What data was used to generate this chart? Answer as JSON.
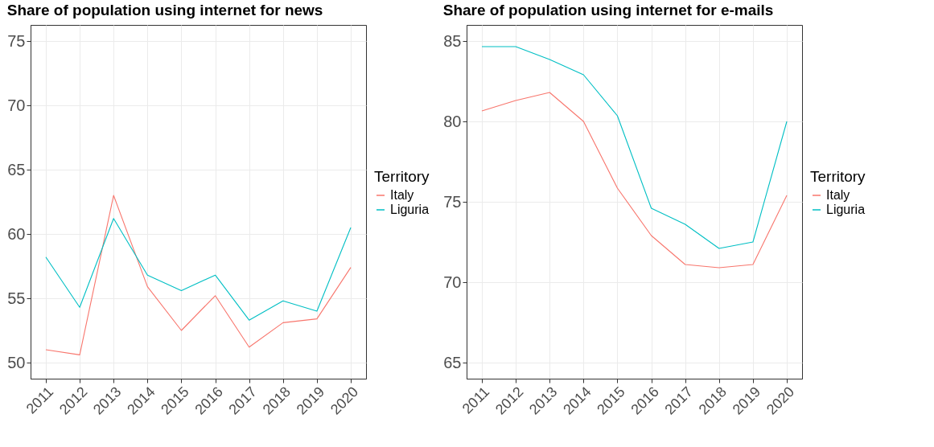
{
  "chart_data": [
    {
      "type": "line",
      "title": "Share of population using internet for news",
      "legend_title": "Territory",
      "legend": "right",
      "grid": true,
      "x": [
        2011,
        2012,
        2013,
        2014,
        2015,
        2016,
        2017,
        2018,
        2019,
        2020
      ],
      "xlim": [
        2010.55,
        2020.45
      ],
      "xticks": [
        2011,
        2012,
        2013,
        2014,
        2015,
        2016,
        2017,
        2018,
        2019,
        2020
      ],
      "ylim": [
        48.75,
        76.25
      ],
      "yticks": [
        50,
        55,
        60,
        65,
        70,
        75
      ],
      "series": [
        {
          "name": "Italy",
          "color": "#f8766d",
          "values": [
            51.0,
            50.6,
            63.0,
            55.9,
            52.5,
            55.2,
            51.2,
            53.1,
            53.4,
            57.4
          ]
        },
        {
          "name": "Liguria",
          "color": "#00bfc4",
          "values": [
            58.2,
            54.3,
            61.2,
            56.8,
            55.6,
            56.8,
            53.3,
            54.8,
            54.0,
            60.5
          ]
        }
      ]
    },
    {
      "type": "line",
      "title": "Share of population using internet for e-mails",
      "legend_title": "Territory",
      "legend": "right",
      "grid": true,
      "x": [
        2011,
        2012,
        2013,
        2014,
        2015,
        2016,
        2017,
        2018,
        2019,
        2020
      ],
      "xlim": [
        2010.55,
        2020.45
      ],
      "xticks": [
        2011,
        2012,
        2013,
        2014,
        2015,
        2016,
        2017,
        2018,
        2019,
        2020
      ],
      "ylim": [
        64,
        86
      ],
      "yticks": [
        65,
        70,
        75,
        80,
        85
      ],
      "series": [
        {
          "name": "Italy",
          "color": "#f8766d",
          "values": [
            80.65,
            81.3,
            81.8,
            80.0,
            75.85,
            72.9,
            71.1,
            70.9,
            71.1,
            75.4
          ]
        },
        {
          "name": "Liguria",
          "color": "#00bfc4",
          "values": [
            84.65,
            84.65,
            83.85,
            82.9,
            80.35,
            74.6,
            73.6,
            72.1,
            72.5,
            80.0
          ]
        }
      ]
    }
  ]
}
